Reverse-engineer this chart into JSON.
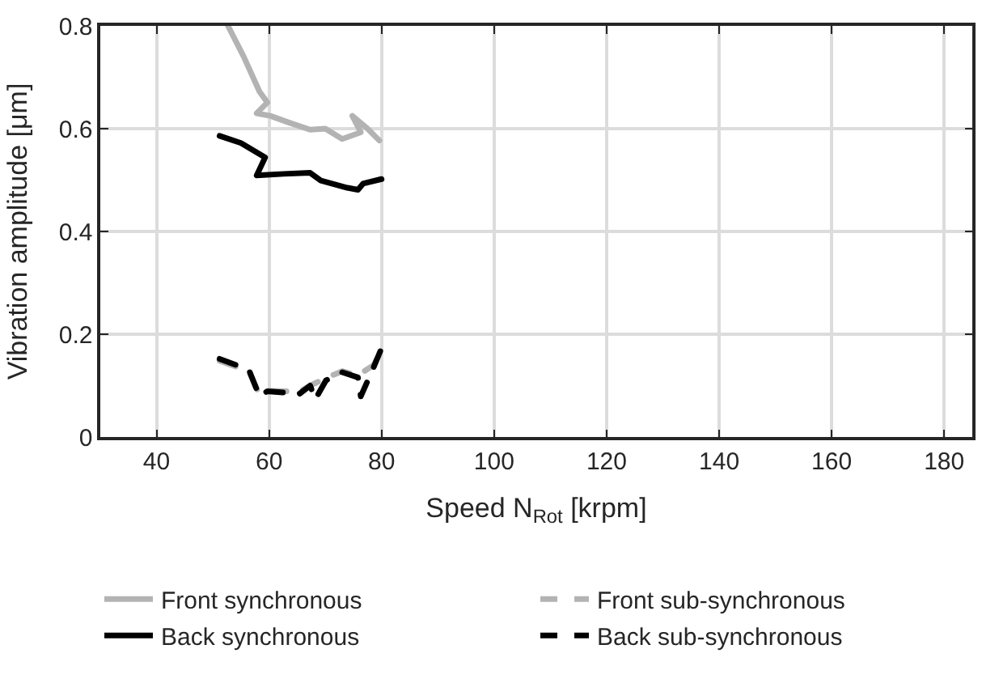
{
  "chart_data": {
    "type": "line",
    "xlabel": "Speed N$_{Rot}$ [krpm]",
    "ylabel": "Vibration amplitude [μm]",
    "xlim": [
      30,
      185
    ],
    "xticks": [
      40,
      60,
      80,
      100,
      120,
      140,
      160,
      180
    ],
    "ylim": [
      0,
      0.8
    ],
    "yticks": [
      0,
      0.2,
      0.4,
      0.6,
      0.8
    ],
    "grid": true,
    "legend": "bottom",
    "marker": "none",
    "series": [
      {
        "name": "Front synchronous",
        "color": "#b3b3b3",
        "line_style": "solid",
        "x": [
          52.7,
          55.5,
          58.3,
          59.7,
          57.8,
          60.2,
          63.5,
          67.3,
          70,
          73,
          76.3,
          74.8,
          77.5,
          79.6
        ],
        "values": [
          0.8,
          0.74,
          0.672,
          0.651,
          0.63,
          0.625,
          0.612,
          0.598,
          0.6,
          0.58,
          0.593,
          0.625,
          0.6,
          0.577
        ]
      },
      {
        "name": "Front sub-synchronous",
        "color": "#b3b3b3",
        "line_style": "dashed",
        "x": [
          51.2,
          56.4,
          58.3,
          59.7,
          65.4,
          67.3,
          70.1,
          73,
          75.8,
          78.6,
          80
        ],
        "values": [
          0.148,
          0.128,
          0.082,
          0.09,
          0.088,
          0.1,
          0.115,
          0.128,
          0.12,
          0.14,
          0.17
        ]
      },
      {
        "name": "Back synchronous",
        "color": "#000000",
        "line_style": "solid",
        "x": [
          51.2,
          55,
          59.3,
          57.8,
          62.6,
          67.3,
          69.2,
          73.9,
          75.8,
          76.7,
          80
        ],
        "values": [
          0.586,
          0.572,
          0.544,
          0.509,
          0.512,
          0.514,
          0.499,
          0.485,
          0.481,
          0.493,
          0.502
        ]
      },
      {
        "name": "Back sub-synchronous",
        "color": "#000000",
        "line_style": "dashed",
        "x": [
          51.2,
          56.4,
          58.3,
          59.7,
          65.4,
          67.3,
          68.2,
          70.1,
          73,
          75.8,
          76.3,
          78.6,
          80
        ],
        "values": [
          0.152,
          0.131,
          0.079,
          0.089,
          0.084,
          0.1,
          0.073,
          0.11,
          0.126,
          0.116,
          0.079,
          0.136,
          0.173
        ]
      }
    ]
  }
}
